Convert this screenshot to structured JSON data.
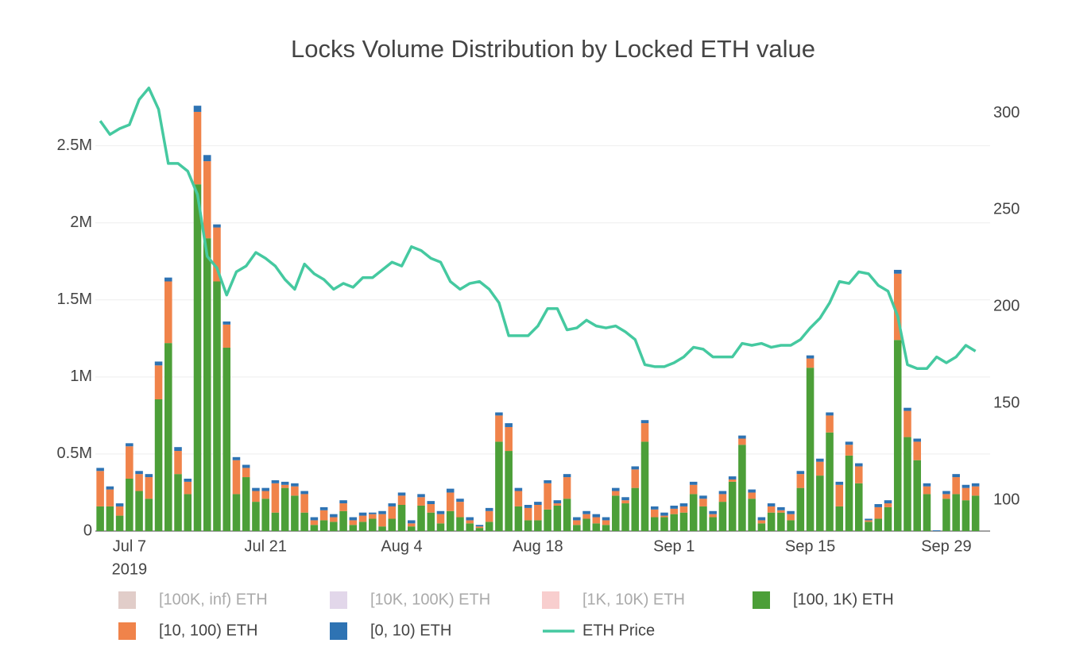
{
  "chart_data": {
    "type": "bar",
    "title": "Locks Volume Distribution by Locked ETH value",
    "barmode": "stack",
    "x": [
      "2019-07-04",
      "2019-07-05",
      "2019-07-06",
      "2019-07-07",
      "2019-07-08",
      "2019-07-09",
      "2019-07-10",
      "2019-07-11",
      "2019-07-12",
      "2019-07-13",
      "2019-07-14",
      "2019-07-15",
      "2019-07-16",
      "2019-07-17",
      "2019-07-18",
      "2019-07-19",
      "2019-07-20",
      "2019-07-21",
      "2019-07-22",
      "2019-07-23",
      "2019-07-24",
      "2019-07-25",
      "2019-07-26",
      "2019-07-27",
      "2019-07-28",
      "2019-07-29",
      "2019-07-30",
      "2019-07-31",
      "2019-08-01",
      "2019-08-02",
      "2019-08-03",
      "2019-08-04",
      "2019-08-05",
      "2019-08-06",
      "2019-08-07",
      "2019-08-08",
      "2019-08-09",
      "2019-08-10",
      "2019-08-11",
      "2019-08-12",
      "2019-08-13",
      "2019-08-14",
      "2019-08-15",
      "2019-08-16",
      "2019-08-17",
      "2019-08-18",
      "2019-08-19",
      "2019-08-20",
      "2019-08-21",
      "2019-08-22",
      "2019-08-23",
      "2019-08-24",
      "2019-08-25",
      "2019-08-26",
      "2019-08-27",
      "2019-08-28",
      "2019-08-29",
      "2019-08-30",
      "2019-08-31",
      "2019-09-01",
      "2019-09-02",
      "2019-09-03",
      "2019-09-04",
      "2019-09-05",
      "2019-09-06",
      "2019-09-07",
      "2019-09-08",
      "2019-09-09",
      "2019-09-10",
      "2019-09-11",
      "2019-09-12",
      "2019-09-13",
      "2019-09-14",
      "2019-09-15",
      "2019-09-16",
      "2019-09-17",
      "2019-09-18",
      "2019-09-19",
      "2019-09-20",
      "2019-09-21",
      "2019-09-22",
      "2019-09-23",
      "2019-09-24",
      "2019-09-25",
      "2019-09-26",
      "2019-09-27",
      "2019-09-28",
      "2019-09-29",
      "2019-09-30",
      "2019-10-01",
      "2019-10-02"
    ],
    "xlim": [
      "2019-07-03T12:00:00Z",
      "2019-10-03T12:00:00Z"
    ],
    "xticks": [
      {
        "value": "2019-07-07",
        "label": "Jul 7"
      },
      {
        "value": "2019-07-21",
        "label": "Jul 21"
      },
      {
        "value": "2019-08-04",
        "label": "Aug 4"
      },
      {
        "value": "2019-08-18",
        "label": "Aug 18"
      },
      {
        "value": "2019-09-01",
        "label": "Sep 1"
      },
      {
        "value": "2019-09-15",
        "label": "Sep 15"
      },
      {
        "value": "2019-09-29",
        "label": "Sep 29"
      }
    ],
    "x_year_label": "2019",
    "ylim": [
      0,
      2900000
    ],
    "yticks": [
      0,
      {
        "value": 500000,
        "label": "0.5M"
      },
      {
        "value": 1000000,
        "label": "1M"
      },
      {
        "value": 1500000,
        "label": "1.5M"
      },
      {
        "value": 2000000,
        "label": "2M"
      },
      {
        "value": 2500000,
        "label": "2.5M"
      }
    ],
    "y2lim": [
      84,
      315
    ],
    "y2ticks": [
      100,
      150,
      200,
      250,
      300
    ],
    "grid": true,
    "legend": "bottom",
    "series": [
      {
        "name": "[100K, inf) ETH",
        "color": "#c49c94",
        "type": "bar",
        "visible": false
      },
      {
        "name": "[10K, 100K) ETH",
        "color": "#c5b0d5",
        "type": "bar",
        "visible": false
      },
      {
        "name": "[1K, 10K) ETH",
        "color": "#f29d9d",
        "type": "bar",
        "visible": false
      },
      {
        "name": "[100, 1K) ETH",
        "color": "#4c9f38",
        "type": "bar",
        "visible": true,
        "values": [
          160000,
          160000,
          100000,
          340000,
          260000,
          210000,
          855000,
          1220000,
          370000,
          240000,
          2250000,
          1900000,
          1620000,
          1190000,
          240000,
          350000,
          190000,
          210000,
          120000,
          280000,
          230000,
          120000,
          40000,
          70000,
          60000,
          130000,
          40000,
          60000,
          80000,
          30000,
          80000,
          170000,
          30000,
          165000,
          120000,
          50000,
          130000,
          90000,
          50000,
          20000,
          60000,
          580000,
          520000,
          160000,
          70000,
          70000,
          140000,
          165000,
          210000,
          40000,
          80000,
          50000,
          40000,
          230000,
          180000,
          280000,
          580000,
          90000,
          90000,
          110000,
          120000,
          240000,
          160000,
          90000,
          190000,
          320000,
          560000,
          210000,
          50000,
          120000,
          120000,
          70000,
          280000,
          1060000,
          360000,
          640000,
          160000,
          490000,
          310000,
          60000,
          80000,
          155000,
          1240000,
          610000,
          460000,
          240000,
          0,
          210000,
          240000,
          200000,
          230000
        ]
      },
      {
        "name": "[10, 100) ETH",
        "color": "#f0834a",
        "type": "bar",
        "visible": true,
        "values": [
          230000,
          110000,
          60000,
          210000,
          110000,
          140000,
          220000,
          400000,
          150000,
          80000,
          470000,
          500000,
          350000,
          150000,
          220000,
          60000,
          70000,
          50000,
          190000,
          20000,
          60000,
          120000,
          30000,
          65000,
          30000,
          50000,
          30000,
          40000,
          30000,
          80000,
          80000,
          60000,
          20000,
          55000,
          55000,
          60000,
          120000,
          100000,
          20000,
          10000,
          70000,
          170000,
          155000,
          100000,
          80000,
          100000,
          170000,
          15000,
          140000,
          30000,
          30000,
          40000,
          30000,
          30000,
          20000,
          120000,
          120000,
          50000,
          10000,
          35000,
          40000,
          60000,
          50000,
          20000,
          50000,
          15000,
          40000,
          40000,
          20000,
          40000,
          15000,
          40000,
          90000,
          60000,
          90000,
          110000,
          140000,
          70000,
          110000,
          10000,
          75000,
          25000,
          430000,
          170000,
          120000,
          50000,
          0,
          30000,
          110000,
          80000,
          60000
        ]
      },
      {
        "name": "[0, 10) ETH",
        "color": "#2e73b3",
        "type": "bar",
        "visible": true,
        "values": [
          20000,
          20000,
          20000,
          20000,
          20000,
          20000,
          25000,
          25000,
          25000,
          20000,
          40000,
          40000,
          20000,
          20000,
          20000,
          20000,
          20000,
          20000,
          20000,
          20000,
          20000,
          20000,
          20000,
          20000,
          20000,
          20000,
          20000,
          20000,
          10000,
          20000,
          20000,
          20000,
          20000,
          20000,
          20000,
          20000,
          25000,
          20000,
          20000,
          10000,
          20000,
          20000,
          25000,
          20000,
          20000,
          20000,
          20000,
          20000,
          20000,
          20000,
          20000,
          20000,
          20000,
          20000,
          20000,
          20000,
          20000,
          20000,
          20000,
          20000,
          20000,
          20000,
          20000,
          20000,
          20000,
          20000,
          20000,
          20000,
          20000,
          20000,
          20000,
          20000,
          20000,
          20000,
          20000,
          20000,
          20000,
          20000,
          20000,
          10000,
          20000,
          20000,
          25000,
          20000,
          20000,
          20000,
          5000,
          20000,
          20000,
          20000,
          20000
        ]
      },
      {
        "name": "ETH Price",
        "color": "#45c9a0",
        "type": "line",
        "axis": "y2",
        "visible": true,
        "values": [
          296,
          289,
          292,
          294,
          307,
          313,
          302,
          274,
          274,
          270,
          258,
          226,
          220,
          206,
          218,
          221,
          228,
          225,
          221,
          214,
          209,
          222,
          217,
          214,
          209,
          212,
          210,
          215,
          215,
          219,
          223,
          221,
          231,
          229,
          225,
          223,
          213,
          209,
          212,
          213,
          209,
          202,
          185,
          185,
          185,
          190,
          199,
          199,
          188,
          189,
          193,
          190,
          189,
          190,
          187,
          183,
          170,
          169,
          169,
          171,
          174,
          179,
          178,
          174,
          174,
          174,
          181,
          180,
          181,
          179,
          180,
          180,
          183,
          189,
          194,
          202,
          213,
          212,
          218,
          217,
          211,
          208,
          195,
          170,
          168,
          168,
          174,
          171,
          174,
          180,
          177
        ]
      }
    ]
  }
}
